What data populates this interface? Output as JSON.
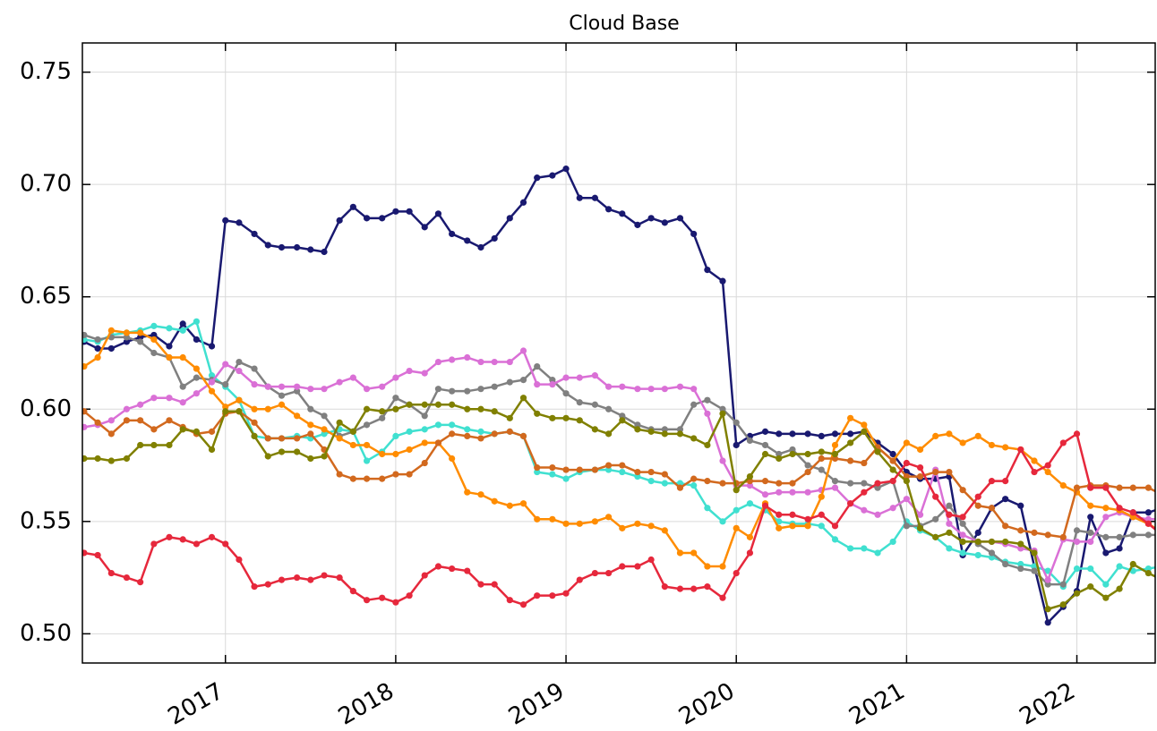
{
  "chart_data": {
    "type": "line",
    "title": "Cloud Base",
    "x": [
      2016.17,
      2016.25,
      2016.33,
      2016.42,
      2016.5,
      2016.58,
      2016.67,
      2016.75,
      2016.83,
      2016.92,
      2017.0,
      2017.08,
      2017.17,
      2017.25,
      2017.33,
      2017.42,
      2017.5,
      2017.58,
      2017.67,
      2017.75,
      2017.83,
      2017.92,
      2018.0,
      2018.08,
      2018.17,
      2018.25,
      2018.33,
      2018.42,
      2018.5,
      2018.58,
      2018.67,
      2018.75,
      2018.83,
      2018.92,
      2019.0,
      2019.08,
      2019.17,
      2019.25,
      2019.33,
      2019.42,
      2019.5,
      2019.58,
      2019.67,
      2019.75,
      2019.83,
      2019.92,
      2020.0,
      2020.08,
      2020.17,
      2020.25,
      2020.33,
      2020.42,
      2020.5,
      2020.58,
      2020.67,
      2020.75,
      2020.83,
      2020.92,
      2021.0,
      2021.08,
      2021.17,
      2021.25,
      2021.33,
      2021.42,
      2021.5,
      2021.58,
      2021.67,
      2021.75,
      2021.83,
      2021.92,
      2022.0,
      2022.08,
      2022.17,
      2022.25,
      2022.33,
      2022.42,
      2022.5
    ],
    "series": [
      {
        "color": "#191970",
        "values": [
          0.63,
          0.627,
          0.627,
          0.63,
          0.632,
          0.633,
          0.628,
          0.638,
          0.631,
          0.628,
          0.684,
          0.683,
          0.678,
          0.673,
          0.672,
          0.672,
          0.671,
          0.67,
          0.684,
          0.69,
          0.685,
          0.685,
          0.688,
          0.688,
          0.681,
          0.687,
          0.678,
          0.675,
          0.672,
          0.676,
          0.685,
          0.692,
          0.703,
          0.704,
          0.707,
          0.694,
          0.694,
          0.689,
          0.687,
          0.682,
          0.685,
          0.683,
          0.685,
          0.678,
          0.662,
          0.657,
          0.584,
          0.588,
          0.59,
          0.589,
          0.589,
          0.589,
          0.588,
          0.589,
          0.589,
          0.59,
          0.585,
          0.58,
          0.572,
          0.569,
          0.569,
          0.57,
          0.535,
          0.545,
          0.556,
          0.56,
          0.557,
          0.53,
          0.505,
          0.512,
          0.519,
          0.552,
          0.536,
          0.538,
          0.554,
          0.554,
          0.556
        ]
      },
      {
        "color": "#40e0d0",
        "values": [
          0.631,
          0.63,
          0.633,
          0.634,
          0.635,
          0.637,
          0.636,
          0.635,
          0.639,
          0.615,
          0.61,
          0.604,
          0.588,
          0.587,
          0.587,
          0.588,
          0.587,
          0.589,
          0.591,
          0.59,
          0.577,
          0.581,
          0.588,
          0.59,
          0.591,
          0.593,
          0.593,
          0.591,
          0.59,
          0.589,
          0.59,
          0.588,
          0.572,
          0.571,
          0.569,
          0.572,
          0.573,
          0.573,
          0.572,
          0.57,
          0.568,
          0.567,
          0.567,
          0.566,
          0.556,
          0.55,
          0.555,
          0.558,
          0.555,
          0.55,
          0.549,
          0.549,
          0.548,
          0.542,
          0.538,
          0.538,
          0.536,
          0.541,
          0.55,
          0.546,
          0.543,
          0.538,
          0.536,
          0.535,
          0.534,
          0.532,
          0.531,
          0.53,
          0.528,
          0.521,
          0.529,
          0.529,
          0.522,
          0.53,
          0.528,
          0.529,
          0.53
        ]
      },
      {
        "color": "#808080",
        "values": [
          0.633,
          0.631,
          0.632,
          0.632,
          0.63,
          0.625,
          0.623,
          0.61,
          0.614,
          0.613,
          0.611,
          0.621,
          0.618,
          0.61,
          0.606,
          0.608,
          0.6,
          0.597,
          0.588,
          0.59,
          0.593,
          0.596,
          0.605,
          0.602,
          0.597,
          0.609,
          0.608,
          0.608,
          0.609,
          0.61,
          0.612,
          0.613,
          0.619,
          0.613,
          0.607,
          0.603,
          0.602,
          0.6,
          0.597,
          0.593,
          0.591,
          0.591,
          0.591,
          0.602,
          0.604,
          0.6,
          0.594,
          0.586,
          0.584,
          0.58,
          0.582,
          0.575,
          0.573,
          0.568,
          0.567,
          0.567,
          0.565,
          0.568,
          0.548,
          0.548,
          0.551,
          0.557,
          0.549,
          0.54,
          0.536,
          0.531,
          0.529,
          0.528,
          0.522,
          0.522,
          0.546,
          0.545,
          0.543,
          0.543,
          0.544,
          0.544,
          0.544
        ]
      },
      {
        "color": "#da70d6",
        "values": [
          0.592,
          0.593,
          0.595,
          0.6,
          0.602,
          0.605,
          0.605,
          0.603,
          0.607,
          0.612,
          0.62,
          0.617,
          0.611,
          0.61,
          0.61,
          0.61,
          0.609,
          0.609,
          0.612,
          0.614,
          0.609,
          0.61,
          0.614,
          0.617,
          0.616,
          0.621,
          0.622,
          0.623,
          0.621,
          0.621,
          0.621,
          0.626,
          0.611,
          0.611,
          0.614,
          0.614,
          0.615,
          0.61,
          0.61,
          0.609,
          0.609,
          0.609,
          0.61,
          0.609,
          0.598,
          0.577,
          0.566,
          0.566,
          0.562,
          0.563,
          0.563,
          0.563,
          0.564,
          0.565,
          0.558,
          0.555,
          0.553,
          0.556,
          0.56,
          0.553,
          0.573,
          0.549,
          0.544,
          0.541,
          0.541,
          0.54,
          0.538,
          0.537,
          0.524,
          0.542,
          0.541,
          0.541,
          0.552,
          0.554,
          0.552,
          0.551,
          0.551
        ]
      },
      {
        "color": "#ff8c00",
        "values": [
          0.619,
          0.623,
          0.635,
          0.634,
          0.634,
          0.631,
          0.623,
          0.623,
          0.618,
          0.608,
          0.601,
          0.604,
          0.6,
          0.6,
          0.602,
          0.597,
          0.593,
          0.591,
          0.587,
          0.584,
          0.584,
          0.58,
          0.58,
          0.582,
          0.585,
          0.585,
          0.578,
          0.563,
          0.562,
          0.559,
          0.557,
          0.558,
          0.551,
          0.551,
          0.549,
          0.549,
          0.55,
          0.552,
          0.547,
          0.549,
          0.548,
          0.546,
          0.536,
          0.536,
          0.53,
          0.53,
          0.547,
          0.543,
          0.558,
          0.547,
          0.548,
          0.548,
          0.561,
          0.584,
          0.596,
          0.593,
          0.583,
          0.577,
          0.585,
          0.582,
          0.588,
          0.589,
          0.585,
          0.588,
          0.584,
          0.583,
          0.582,
          0.577,
          0.572,
          0.566,
          0.563,
          0.557,
          0.556,
          0.555,
          0.552,
          0.549,
          0.545
        ]
      },
      {
        "color": "#d2691e",
        "values": [
          0.599,
          0.594,
          0.589,
          0.595,
          0.595,
          0.591,
          0.595,
          0.592,
          0.589,
          0.59,
          0.598,
          0.599,
          0.594,
          0.587,
          0.587,
          0.587,
          0.589,
          0.582,
          0.571,
          0.569,
          0.569,
          0.569,
          0.571,
          0.571,
          0.576,
          0.585,
          0.589,
          0.588,
          0.587,
          0.589,
          0.59,
          0.588,
          0.574,
          0.574,
          0.573,
          0.573,
          0.573,
          0.575,
          0.575,
          0.572,
          0.572,
          0.571,
          0.565,
          0.569,
          0.568,
          0.567,
          0.567,
          0.568,
          0.568,
          0.567,
          0.567,
          0.572,
          0.578,
          0.578,
          0.577,
          0.576,
          0.583,
          0.577,
          0.57,
          0.57,
          0.572,
          0.572,
          0.564,
          0.557,
          0.556,
          0.548,
          0.546,
          0.545,
          0.544,
          0.543,
          0.565,
          0.566,
          0.566,
          0.565,
          0.565,
          0.565,
          0.562
        ]
      },
      {
        "color": "#808000",
        "values": [
          0.578,
          0.578,
          0.577,
          0.578,
          0.584,
          0.584,
          0.584,
          0.591,
          0.59,
          0.582,
          0.599,
          0.599,
          0.588,
          0.579,
          0.581,
          0.581,
          0.578,
          0.579,
          0.594,
          0.59,
          0.6,
          0.599,
          0.6,
          0.602,
          0.602,
          0.602,
          0.602,
          0.6,
          0.6,
          0.599,
          0.596,
          0.605,
          0.598,
          0.596,
          0.596,
          0.595,
          0.591,
          0.589,
          0.595,
          0.591,
          0.59,
          0.589,
          0.589,
          0.587,
          0.584,
          0.598,
          0.564,
          0.57,
          0.58,
          0.578,
          0.58,
          0.58,
          0.581,
          0.58,
          0.585,
          0.59,
          0.581,
          0.573,
          0.568,
          0.547,
          0.543,
          0.545,
          0.541,
          0.541,
          0.541,
          0.541,
          0.54,
          0.536,
          0.511,
          0.513,
          0.518,
          0.521,
          0.516,
          0.52,
          0.531,
          0.527,
          0.524
        ]
      },
      {
        "color": "#e6283c",
        "values": [
          0.536,
          0.535,
          0.527,
          0.525,
          0.523,
          0.54,
          0.543,
          0.542,
          0.54,
          0.543,
          0.54,
          0.533,
          0.521,
          0.522,
          0.524,
          0.525,
          0.524,
          0.526,
          0.525,
          0.519,
          0.515,
          0.516,
          0.514,
          0.517,
          0.526,
          0.53,
          0.529,
          0.528,
          0.522,
          0.522,
          0.515,
          0.513,
          0.517,
          0.517,
          0.518,
          0.524,
          0.527,
          0.527,
          0.53,
          0.53,
          0.533,
          0.521,
          0.52,
          0.52,
          0.521,
          0.516,
          0.527,
          0.536,
          0.557,
          0.553,
          0.553,
          0.551,
          0.553,
          0.548,
          0.558,
          0.563,
          0.567,
          0.568,
          0.576,
          0.574,
          0.561,
          0.553,
          0.552,
          0.561,
          0.568,
          0.568,
          0.582,
          0.572,
          0.575,
          0.585,
          0.589,
          0.565,
          0.565,
          0.556,
          0.554,
          0.549,
          0.544
        ]
      }
    ],
    "xlim": [
      2016.16,
      2022.46
    ],
    "xticks": [
      2017,
      2018,
      2019,
      2020,
      2021,
      2022
    ],
    "ylim": [
      0.487,
      0.763
    ],
    "yticks": [
      {
        "value": 0.5,
        "label": "0.50"
      },
      0.55,
      {
        "value": 0.6,
        "label": "0.60"
      },
      0.65,
      {
        "value": 0.7,
        "label": "0.70"
      },
      0.75
    ],
    "grid": true
  }
}
